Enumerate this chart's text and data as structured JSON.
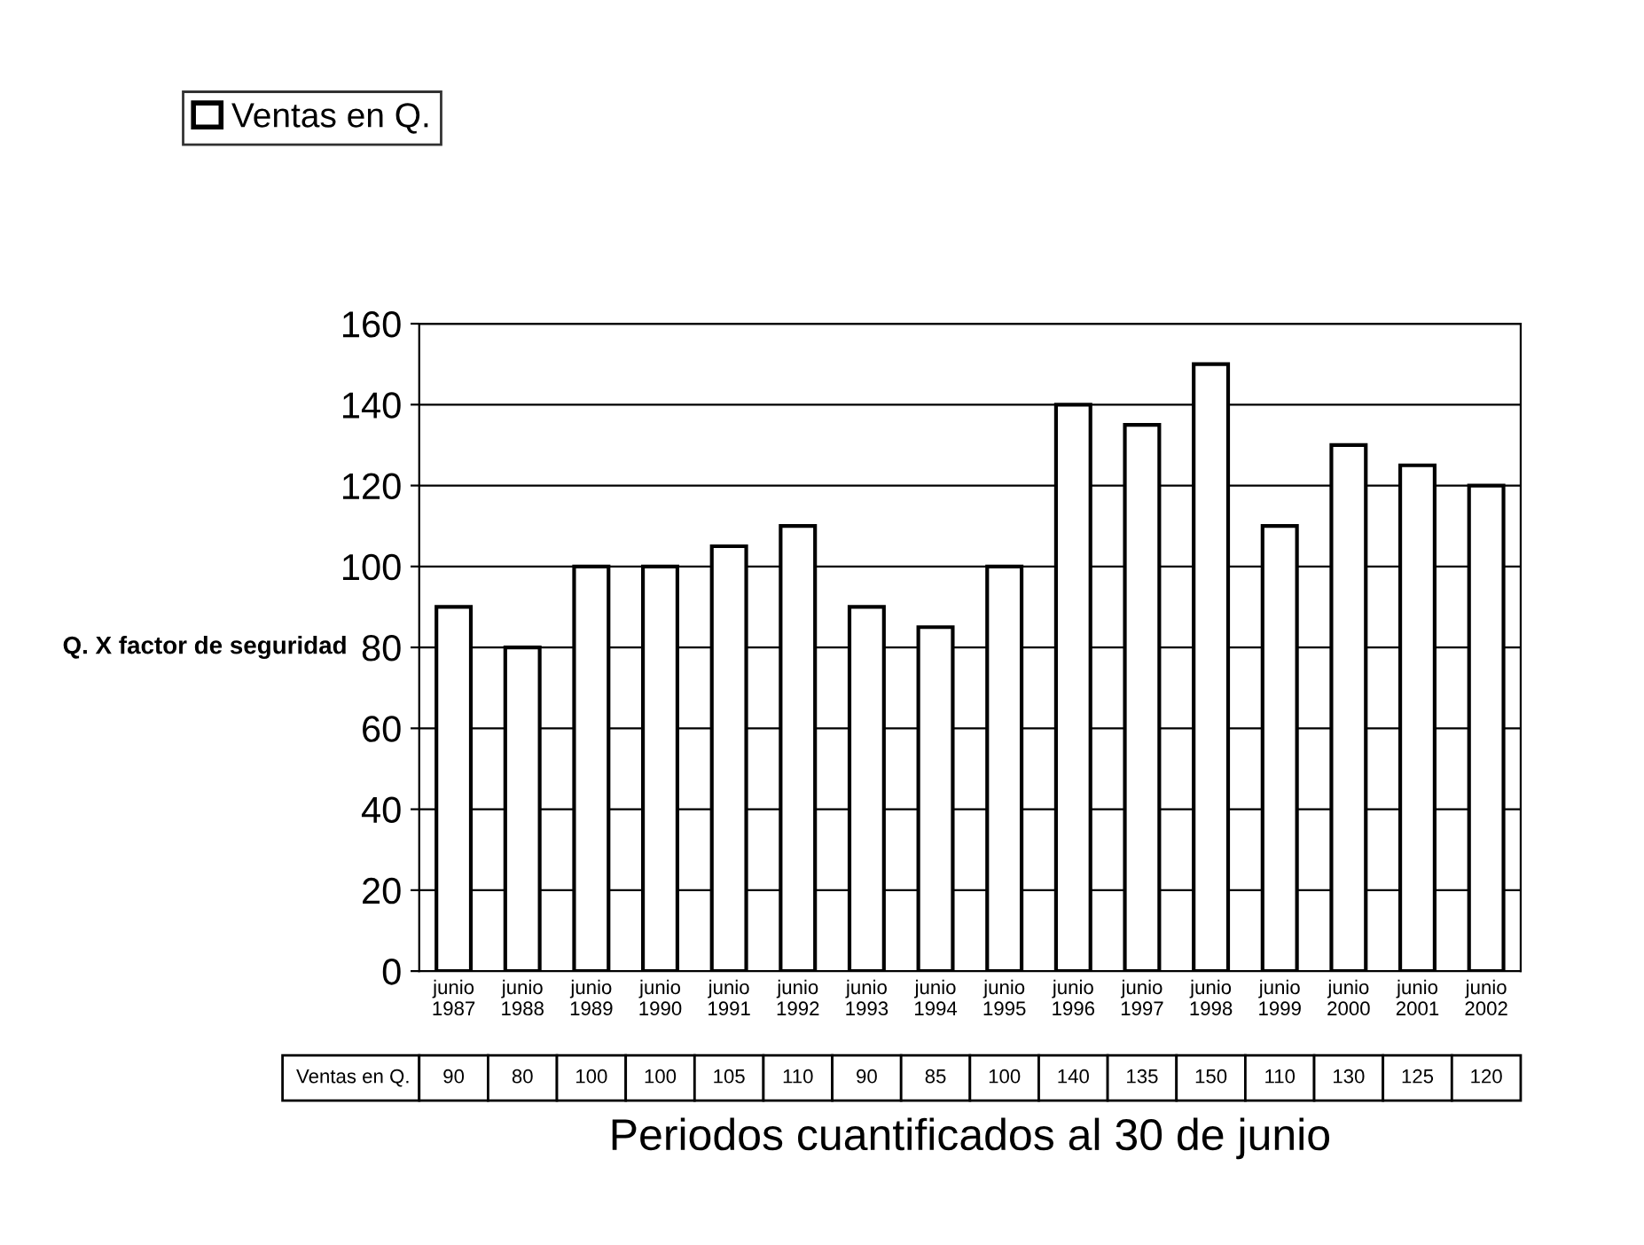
{
  "chart_data": {
    "type": "bar",
    "xlabel": "Periodos cuantificados al 30 de junio",
    "ylabel": "Q. X factor de seguridad",
    "categories": [
      "junio\n1987",
      "junio\n1988",
      "junio\n1989",
      "junio\n1990",
      "junio\n1991",
      "junio\n1992",
      "junio\n1993",
      "junio\n1994",
      "junio\n1995",
      "junio\n1996",
      "junio\n1997",
      "junio\n1998",
      "junio\n1999",
      "junio\n2000",
      "junio\n2001",
      "junio\n2002"
    ],
    "series": [
      {
        "name": "Ventas en Q.",
        "color": "#ffffff",
        "values": [
          90,
          80,
          100,
          100,
          105,
          110,
          90,
          85,
          100,
          140,
          135,
          150,
          110,
          130,
          125,
          120
        ]
      }
    ],
    "ylim": [
      0,
      160
    ],
    "yticks": [
      0,
      20,
      40,
      60,
      80,
      100,
      120,
      140,
      160
    ],
    "grid": "y",
    "legend": "top left",
    "data_labels": true
  }
}
